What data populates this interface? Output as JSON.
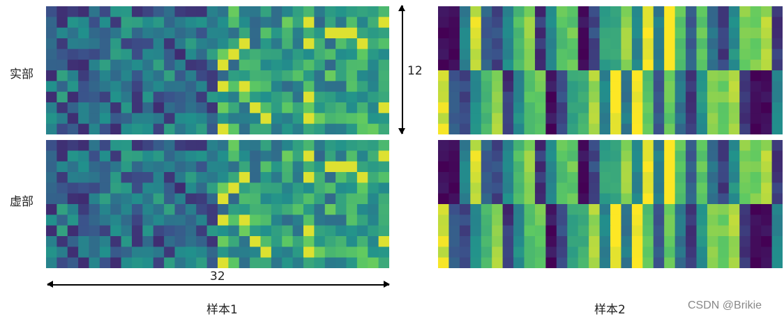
{
  "chart_data": [
    {
      "type": "heatmap",
      "title": "",
      "row_label": "实部",
      "group_label": "样本1",
      "rows": 12,
      "cols": 32,
      "colormap": "viridis",
      "pattern": "sample1-real"
    },
    {
      "type": "heatmap",
      "title": "",
      "row_label": "虚部",
      "group_label": "样本1",
      "rows": 12,
      "cols": 32,
      "colormap": "viridis",
      "pattern": "sample1-imag"
    },
    {
      "type": "heatmap",
      "title": "",
      "row_label": "实部",
      "group_label": "样本2",
      "rows": 12,
      "cols": 32,
      "colormap": "viridis",
      "pattern": "sample2-real-columns"
    },
    {
      "type": "heatmap",
      "title": "",
      "row_label": "虚部",
      "group_label": "样本2",
      "rows": 12,
      "cols": 32,
      "colormap": "viridis",
      "pattern": "sample2-imag-columns"
    }
  ],
  "labels": {
    "real": "实部",
    "imag": "虚部",
    "sample1": "样本1",
    "sample2": "样本2",
    "width_dim": "32",
    "height_dim": "12",
    "watermark": "CSDN @Brikie"
  },
  "colors": {
    "low": "#440154",
    "mid": "#21918c",
    "high": "#fde725"
  }
}
